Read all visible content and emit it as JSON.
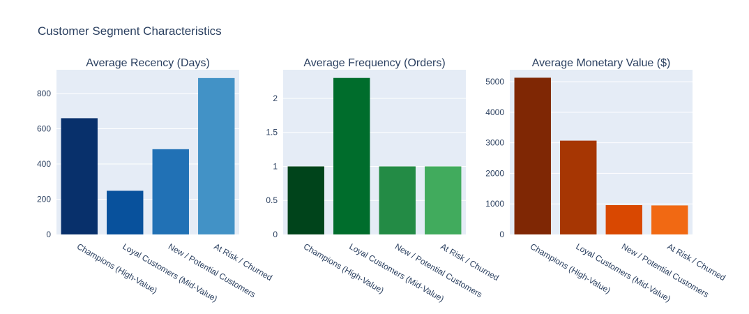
{
  "figure": {
    "title": "Customer Segment Characteristics"
  },
  "chart_data": [
    {
      "type": "bar",
      "title": "Average Recency (Days)",
      "categories": [
        "Champions (High-Value)",
        "Loyal Customers (Mid-Value)",
        "New / Potential Customers",
        "At Risk / Churned"
      ],
      "values": [
        660,
        248,
        484,
        888
      ],
      "colors": [
        "#08306b",
        "#08519c",
        "#2171b5",
        "#4292c6"
      ],
      "ylim": [
        0,
        935
      ],
      "yticks": [
        0,
        200,
        400,
        600,
        800
      ],
      "ytick_labels": [
        "0",
        "200",
        "400",
        "600",
        "800"
      ],
      "xlabel": "",
      "ylabel": ""
    },
    {
      "type": "bar",
      "title": "Average Frequency (Orders)",
      "categories": [
        "Champions (High-Value)",
        "Loyal Customers (Mid-Value)",
        "New / Potential Customers",
        "At Risk / Churned"
      ],
      "values": [
        1.0,
        2.3,
        1.0,
        1.0
      ],
      "colors": [
        "#00441b",
        "#006d2c",
        "#238b45",
        "#41ab5d"
      ],
      "ylim": [
        0,
        2.42
      ],
      "yticks": [
        0,
        0.5,
        1,
        1.5,
        2
      ],
      "ytick_labels": [
        "0",
        "0.5",
        "1",
        "1.5",
        "2"
      ],
      "xlabel": "",
      "ylabel": ""
    },
    {
      "type": "bar",
      "title": "Average Monetary Value ($)",
      "categories": [
        "Champions (High-Value)",
        "Loyal Customers (Mid-Value)",
        "New / Potential Customers",
        "At Risk / Churned"
      ],
      "values": [
        5130,
        3070,
        960,
        950
      ],
      "colors": [
        "#7f2704",
        "#a63603",
        "#d94801",
        "#f16913"
      ],
      "ylim": [
        0,
        5390
      ],
      "yticks": [
        0,
        1000,
        2000,
        3000,
        4000,
        5000
      ],
      "ytick_labels": [
        "0",
        "1000",
        "2000",
        "3000",
        "4000",
        "5000"
      ],
      "xlabel": "",
      "ylabel": ""
    }
  ],
  "style": {
    "plot_bg": "#e5ecf6",
    "grid_color": "#ffffff",
    "title_color": "#2a3f5f",
    "tick_color": "#2a3f5f"
  }
}
